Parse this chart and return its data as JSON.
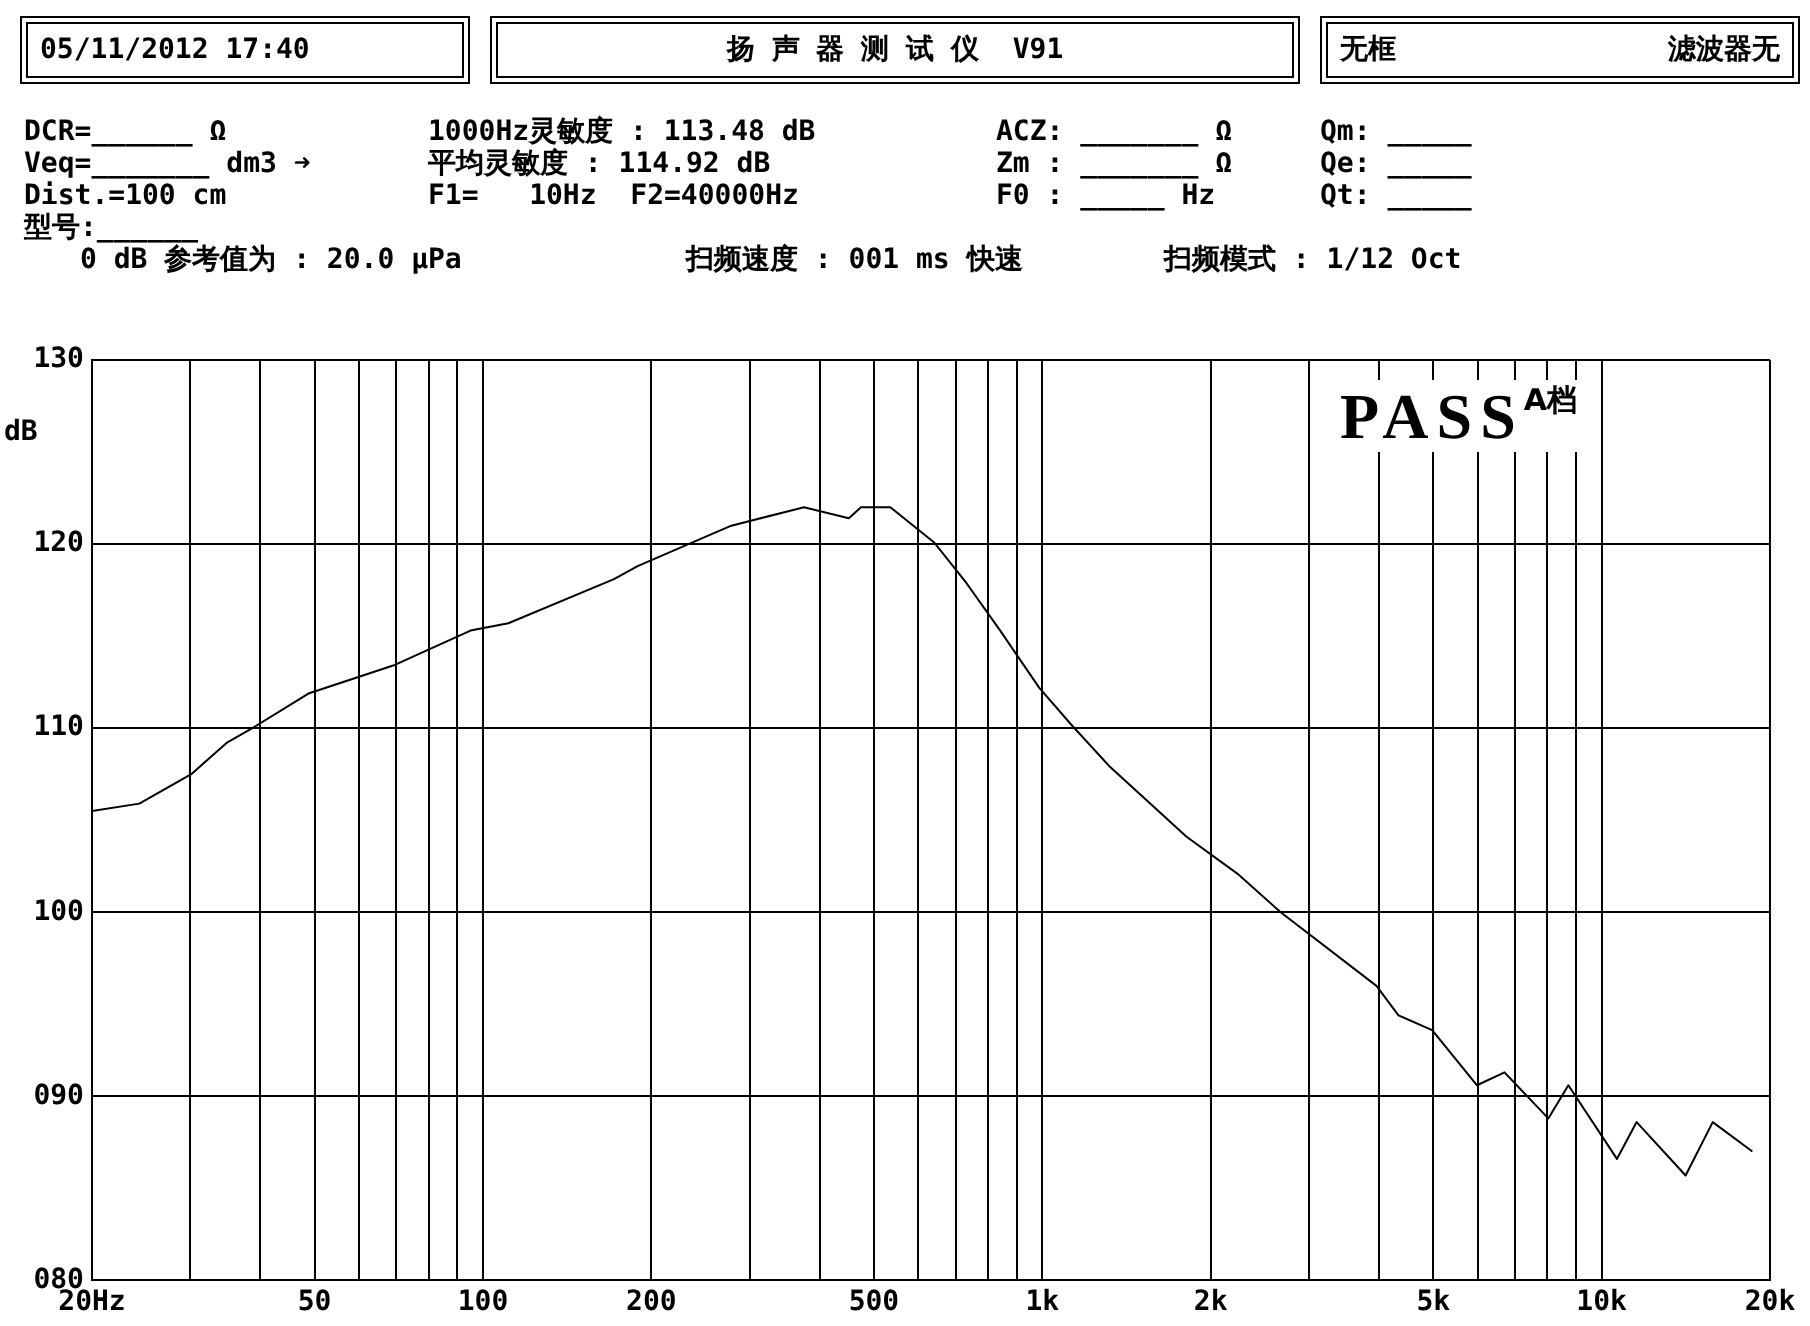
{
  "chart_data": {
    "type": "line",
    "title": "扬 声 器 测 试 仪  V91",
    "ylabel": "dB",
    "annotations": [
      "05/11/2012 17:40",
      "无框",
      "滤波器无",
      "DCR=______ Ω",
      "1000Hz灵敏度 : 113.48 dB",
      "ACZ: _______ Ω",
      "Qm: _____",
      "Veq=_______ dm3 ➜",
      "平均灵敏度 : 114.92 dB",
      "Zm : _______ Ω",
      "Qe: _____",
      "Dist.=100 cm",
      "F1=   10Hz  F2=40000Hz",
      "F0 : _____ Hz",
      "Qt: _____",
      "型号:______",
      "0 dB 参考值为 : 20.0 μPa",
      "扫频速度 : 001 ms 快速",
      "扫频模式 : 1/12 Oct",
      "PASS",
      "A档"
    ],
    "x": [
      20,
      24.3,
      30.1,
      34.8,
      38.7,
      48.9,
      69.1,
      95,
      111,
      171.5,
      189,
      278,
      375,
      451,
      474,
      535,
      640,
      731,
      841,
      987,
      1126,
      1321,
      1811,
      2232,
      2668,
      3958,
      4333,
      4978,
      5987,
      6704,
      8030,
      8720,
      10650,
      11550,
      14130,
      15800,
      18600
    ],
    "series": [
      {
        "color": "#000000",
        "values": [
          105.5,
          105.9,
          107.5,
          109.2,
          110,
          111.9,
          113.4,
          115.3,
          115.7,
          118.1,
          118.8,
          121,
          122,
          121.4,
          122,
          122,
          120.1,
          117.9,
          115.3,
          112.2,
          110.2,
          107.9,
          104.1,
          102.1,
          100,
          96,
          94.4,
          93.6,
          90.6,
          91.3,
          88.8,
          90.6,
          86.6,
          88.6,
          85.7,
          88.6,
          87
        ]
      }
    ],
    "log": "x",
    "grid": true,
    "legend": false,
    "marker": "none",
    "line_style": "solid",
    "xlim": [
      20,
      20000
    ],
    "xticks": [
      {
        "value": 20,
        "label": "20Hz"
      },
      {
        "value": 30,
        "label": null
      },
      {
        "value": 40,
        "label": null
      },
      50,
      {
        "value": 60,
        "label": null
      },
      {
        "value": 70,
        "label": null
      },
      {
        "value": 80,
        "label": null
      },
      {
        "value": 90,
        "label": null
      },
      100,
      200,
      {
        "value": 300,
        "label": null
      },
      {
        "value": 400,
        "label": null
      },
      500,
      {
        "value": 600,
        "label": null
      },
      {
        "value": 700,
        "label": null
      },
      {
        "value": 800,
        "label": null
      },
      {
        "value": 900,
        "label": null
      },
      {
        "value": 1000,
        "label": "1k"
      },
      {
        "value": 2000,
        "label": "2k"
      },
      {
        "value": 3000,
        "label": null
      },
      {
        "value": 4000,
        "label": null
      },
      {
        "value": 5000,
        "label": "5k"
      },
      {
        "value": 6000,
        "label": null
      },
      {
        "value": 7000,
        "label": null
      },
      {
        "value": 8000,
        "label": null
      },
      {
        "value": 9000,
        "label": null
      },
      {
        "value": 10000,
        "label": "10k"
      },
      {
        "value": 20000,
        "label": "20k"
      }
    ],
    "ylim": [
      80,
      130
    ],
    "yticks": [
      {
        "value": 80,
        "label": "080"
      },
      {
        "value": 90,
        "label": "090"
      },
      100,
      110,
      120,
      130
    ]
  }
}
